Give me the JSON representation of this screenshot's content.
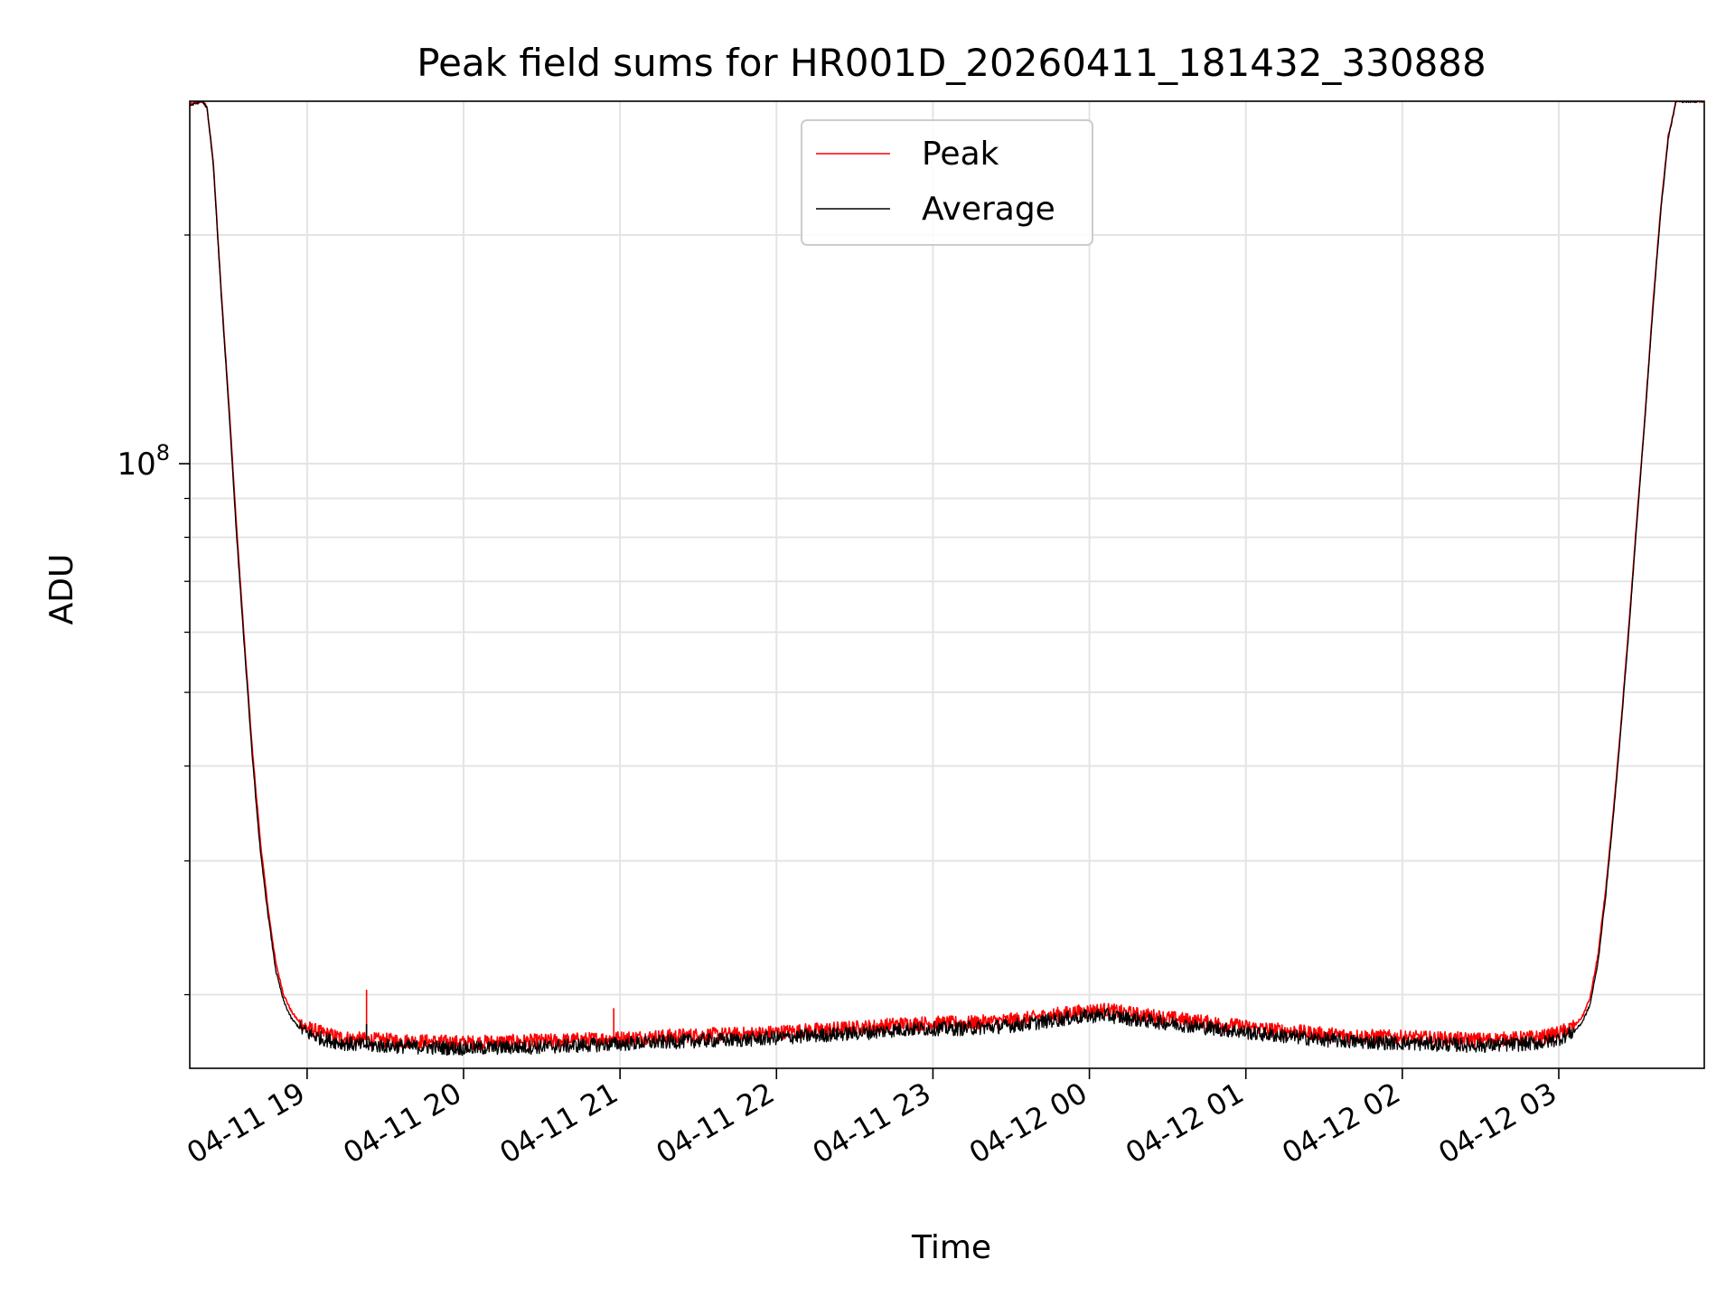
{
  "chart_data": {
    "type": "line",
    "title": "Peak field sums for HR001D_20260411_181432_330888",
    "xlabel": "Time",
    "ylabel": "ADU",
    "y_scale": "log",
    "grid": true,
    "grid_minor": true,
    "legend_position": "top-center",
    "x_unit": "hours since 2026-04-11 18:00",
    "xlim": [
      18.25,
      27.93
    ],
    "ylim": [
      16000000,
      300000000
    ],
    "x_ticks": [
      {
        "value": 19,
        "label": "04-11 19"
      },
      {
        "value": 20,
        "label": "04-11 20"
      },
      {
        "value": 21,
        "label": "04-11 21"
      },
      {
        "value": 22,
        "label": "04-11 22"
      },
      {
        "value": 23,
        "label": "04-11 23"
      },
      {
        "value": 24,
        "label": "04-12 00"
      },
      {
        "value": 25,
        "label": "04-12 01"
      },
      {
        "value": 26,
        "label": "04-12 02"
      },
      {
        "value": 27,
        "label": "04-12 03"
      }
    ],
    "y_major_ticks": [
      {
        "value": 100000000,
        "base": "10",
        "exponent": "8"
      }
    ],
    "y_minor_ticks": [
      20000000,
      30000000,
      40000000,
      50000000,
      60000000,
      70000000,
      80000000,
      90000000,
      200000000
    ],
    "series": [
      {
        "name": "Peak",
        "color": "#ff0000",
        "x": [
          18.25,
          18.33,
          18.36,
          18.4,
          18.45,
          18.5,
          18.55,
          18.6,
          18.65,
          18.7,
          18.75,
          18.8,
          18.85,
          18.9,
          18.95,
          19.0,
          19.1,
          19.2,
          19.3,
          19.4,
          19.6,
          19.8,
          20.0,
          20.3,
          20.6,
          20.9,
          21.2,
          21.5,
          21.8,
          22.0,
          22.3,
          22.6,
          22.8,
          23.0,
          23.2,
          23.4,
          23.6,
          23.8,
          24.0,
          24.1,
          24.3,
          24.5,
          24.7,
          24.9,
          25.1,
          25.3,
          25.5,
          25.7,
          25.9,
          26.1,
          26.3,
          26.5,
          26.7,
          26.9,
          27.0,
          27.1,
          27.15,
          27.2,
          27.25,
          27.3,
          27.35,
          27.4,
          27.45,
          27.5,
          27.55,
          27.6,
          27.65,
          27.7,
          27.75,
          27.8,
          27.85,
          27.93
        ],
        "y": [
          297000000,
          300000000,
          295000000,
          250000000,
          170000000,
          120000000,
          82000000,
          58000000,
          42000000,
          32000000,
          26000000,
          22000000,
          20000000,
          19000000,
          18400000,
          18100000,
          17800000,
          17600000,
          17500000,
          17450000,
          17400000,
          17350000,
          17300000,
          17350000,
          17400000,
          17500000,
          17600000,
          17700000,
          17750000,
          17850000,
          18000000,
          18150000,
          18300000,
          18350000,
          18350000,
          18450000,
          18600000,
          18850000,
          19050000,
          19100000,
          18850000,
          18650000,
          18450000,
          18250000,
          18050000,
          17900000,
          17750000,
          17650000,
          17600000,
          17550000,
          17500000,
          17450000,
          17500000,
          17600000,
          17800000,
          18200000,
          18700000,
          19800000,
          22500000,
          27500000,
          35000000,
          46000000,
          62000000,
          85000000,
          115000000,
          160000000,
          215000000,
          270000000,
          300000000,
          300000000,
          300000000,
          300000000
        ],
        "spikes": [
          {
            "x": 19.38,
            "y": 20300000
          },
          {
            "x": 20.96,
            "y": 19200000
          }
        ]
      },
      {
        "name": "Average",
        "color": "#000000",
        "x": [
          18.25,
          18.33,
          18.36,
          18.4,
          18.45,
          18.5,
          18.55,
          18.6,
          18.65,
          18.7,
          18.75,
          18.8,
          18.85,
          18.9,
          18.95,
          19.0,
          19.1,
          19.2,
          19.3,
          19.4,
          19.6,
          19.8,
          20.0,
          20.3,
          20.6,
          20.9,
          21.2,
          21.5,
          21.8,
          22.0,
          22.3,
          22.6,
          22.8,
          23.0,
          23.2,
          23.4,
          23.6,
          23.8,
          24.0,
          24.1,
          24.3,
          24.5,
          24.7,
          24.9,
          25.1,
          25.3,
          25.5,
          25.7,
          25.9,
          26.1,
          26.3,
          26.5,
          26.7,
          26.9,
          27.0,
          27.1,
          27.15,
          27.2,
          27.25,
          27.3,
          27.35,
          27.4,
          27.45,
          27.5,
          27.55,
          27.6,
          27.65,
          27.7,
          27.75,
          27.8,
          27.85,
          27.93
        ],
        "y": [
          296000000,
          300000000,
          294000000,
          248000000,
          168000000,
          118000000,
          80000000,
          57000000,
          41000000,
          31000000,
          25500000,
          21500000,
          19600000,
          18600000,
          18100000,
          17800000,
          17500000,
          17300000,
          17200000,
          17150000,
          17100000,
          17050000,
          17000000,
          17050000,
          17100000,
          17200000,
          17300000,
          17400000,
          17450000,
          17550000,
          17700000,
          17850000,
          18000000,
          18050000,
          18050000,
          18150000,
          18300000,
          18550000,
          18750000,
          18800000,
          18550000,
          18350000,
          18150000,
          17950000,
          17750000,
          17600000,
          17450000,
          17350000,
          17300000,
          17250000,
          17200000,
          17150000,
          17200000,
          17300000,
          17500000,
          17900000,
          18400000,
          19400000,
          22000000,
          27000000,
          34500000,
          45500000,
          61000000,
          84000000,
          114000000,
          158000000,
          213000000,
          268000000,
          300000000,
          300000000,
          300000000,
          300000000
        ],
        "spikes": [
          {
            "x": 19.38,
            "y": 18300000
          }
        ]
      }
    ]
  }
}
